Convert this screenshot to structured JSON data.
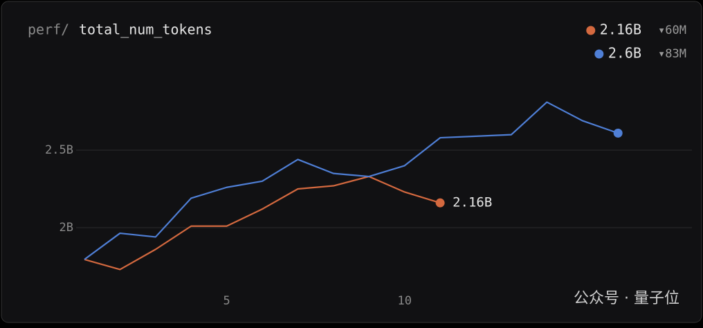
{
  "chart_data": {
    "type": "line",
    "title_prefix": "perf/",
    "title": "total_num_tokens",
    "x": [
      1,
      2,
      3,
      4,
      5,
      6,
      7,
      8,
      9,
      10,
      11,
      12,
      13,
      14,
      15,
      16
    ],
    "series": [
      {
        "color": "#d4693f",
        "legend": [
          "2.16B",
          "▾60M"
        ],
        "end_label": "2.16B",
        "values": [
          1.795,
          1.73,
          1.86,
          2.01,
          2.01,
          2.12,
          2.25,
          2.27,
          2.33,
          2.23,
          2.16,
          null,
          null,
          null,
          null,
          null
        ]
      },
      {
        "color": "#4f7fd6",
        "legend": [
          "2.6B",
          "▾83M"
        ],
        "values": [
          1.795,
          1.964,
          1.94,
          2.19,
          2.26,
          2.3,
          2.44,
          2.35,
          2.33,
          2.4,
          2.58,
          2.59,
          2.6,
          2.81,
          2.69,
          2.61
        ]
      }
    ],
    "xlim": [
      1,
      18
    ],
    "xticks": [
      5,
      10
    ],
    "ylim": [
      1.6,
      3.0
    ],
    "yticks": [
      {
        "value": 2,
        "label": "2B"
      },
      {
        "value": 2.5,
        "label": "2.5B"
      }
    ],
    "grid": true,
    "watermark": "公众号 · 量子位"
  }
}
